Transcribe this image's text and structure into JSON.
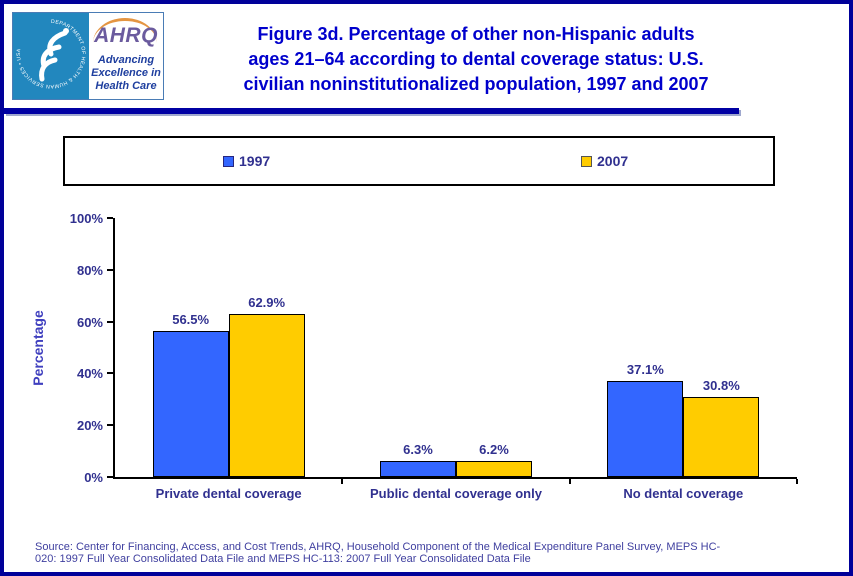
{
  "colors": {
    "border": "#000099",
    "title": "#0000CC",
    "chart_text": "#30308F",
    "axis_label": "#4040BF",
    "source_text": "#3F3F9F",
    "bar_1997": "#3366FF",
    "bar_2007": "#FFCC00"
  },
  "header": {
    "logo": {
      "seal_text": "DEPARTMENT OF HEALTH & HUMAN SERVICES • USA",
      "acronym": "AHRQ",
      "tagline_lines": [
        "Advancing",
        "Excellence in",
        "Health Care"
      ]
    },
    "title_lines": [
      "Figure 3d. Percentage of other non-Hispanic adults",
      "ages 21–64 according to dental coverage status: U.S.",
      "civilian noninstitutionalized population, 1997 and 2007"
    ]
  },
  "chart_data": {
    "type": "bar",
    "title": "Figure 3d. Percentage of other non-Hispanic adults ages 21–64 according to dental coverage status: U.S. civilian noninstitutionalized population, 1997 and 2007",
    "categories": [
      "Private dental coverage",
      "Public dental coverage only",
      "No dental coverage"
    ],
    "series": [
      {
        "name": "1997",
        "color": "#3366FF",
        "values": [
          56.5,
          6.3,
          37.1
        ]
      },
      {
        "name": "2007",
        "color": "#FFCC00",
        "values": [
          62.9,
          6.2,
          30.8
        ]
      }
    ],
    "xlabel": "",
    "ylabel": "Percentage",
    "ylim": [
      0,
      100
    ],
    "yticks": [
      "0%",
      "20%",
      "40%",
      "60%",
      "80%",
      "100%"
    ],
    "grid": false,
    "legend_position": "top",
    "data_label_format": "{value}%"
  },
  "footer": {
    "source_lines": [
      "Source: Center for Financing, Access, and Cost Trends, AHRQ, Household Component of the Medical Expenditure Panel Survey, MEPS HC-",
      "020: 1997 Full Year Consolidated Data File and MEPS HC-113: 2007 Full Year Consolidated Data File"
    ]
  }
}
